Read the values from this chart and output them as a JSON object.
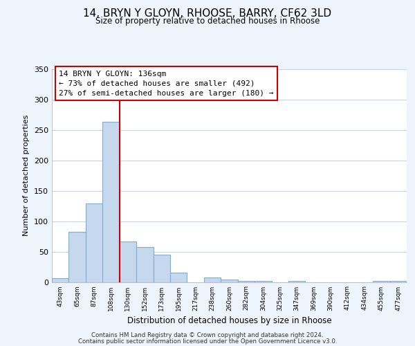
{
  "title_line1": "14, BRYN Y GLOYN, RHOOSE, BARRY, CF62 3LD",
  "title_line2": "Size of property relative to detached houses in Rhoose",
  "xlabel": "Distribution of detached houses by size in Rhoose",
  "ylabel": "Number of detached properties",
  "bin_labels": [
    "43sqm",
    "65sqm",
    "87sqm",
    "108sqm",
    "130sqm",
    "152sqm",
    "173sqm",
    "195sqm",
    "217sqm",
    "238sqm",
    "260sqm",
    "282sqm",
    "304sqm",
    "325sqm",
    "347sqm",
    "369sqm",
    "390sqm",
    "412sqm",
    "434sqm",
    "455sqm",
    "477sqm"
  ],
  "bar_heights": [
    6,
    82,
    129,
    263,
    67,
    57,
    45,
    15,
    0,
    7,
    4,
    2,
    2,
    0,
    2,
    0,
    0,
    0,
    0,
    2,
    2
  ],
  "bar_color": "#c5d8ee",
  "bar_edge_color": "#7bafd4",
  "vline_x_index": 4,
  "vline_color": "#cc0000",
  "annotation_title": "14 BRYN Y GLOYN: 136sqm",
  "annotation_line1": "← 73% of detached houses are smaller (492)",
  "annotation_line2": "27% of semi-detached houses are larger (180) →",
  "annotation_box_color": "#ffffff",
  "annotation_box_edge_color": "#cc0000",
  "ylim": [
    0,
    350
  ],
  "yticks": [
    0,
    50,
    100,
    150,
    200,
    250,
    300,
    350
  ],
  "footer_line1": "Contains HM Land Registry data © Crown copyright and database right 2024.",
  "footer_line2": "Contains public sector information licensed under the Open Government Licence v3.0.",
  "background_color": "#eef4fb",
  "plot_bg_color": "#ffffff",
  "grid_color": "#c0d4e8"
}
